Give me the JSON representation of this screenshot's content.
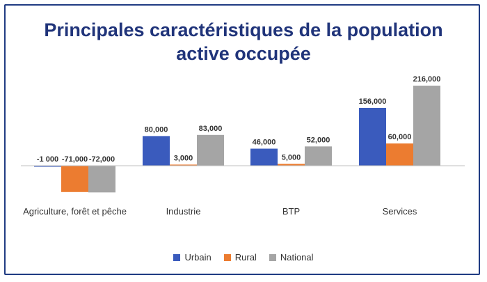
{
  "chart_data": {
    "type": "bar",
    "title_line1": "Principales caractéristiques de la population",
    "title_line2": "active occupée",
    "categories": [
      "Agriculture, forêt et pêche",
      "Industrie",
      "BTP",
      "Services"
    ],
    "series": [
      {
        "name": "Urbain",
        "color": "#3a5bbd",
        "values": [
          -1000,
          80000,
          46000,
          156000
        ],
        "labels": [
          "-1 000",
          "80,000",
          "46,000",
          "156,000"
        ]
      },
      {
        "name": "Rural",
        "color": "#ec7c30",
        "values": [
          -71000,
          3000,
          5000,
          60000
        ],
        "labels": [
          "-71,000",
          "3,000",
          "5,000",
          "60,000"
        ]
      },
      {
        "name": "National",
        "color": "#a5a5a5",
        "values": [
          -72000,
          83000,
          52000,
          216000
        ],
        "labels": [
          "-72,000",
          "83,000",
          "52,000",
          "216,000"
        ]
      }
    ],
    "ylim": [
      -72000,
      216000
    ],
    "grid": false,
    "legend_position": "bottom"
  }
}
